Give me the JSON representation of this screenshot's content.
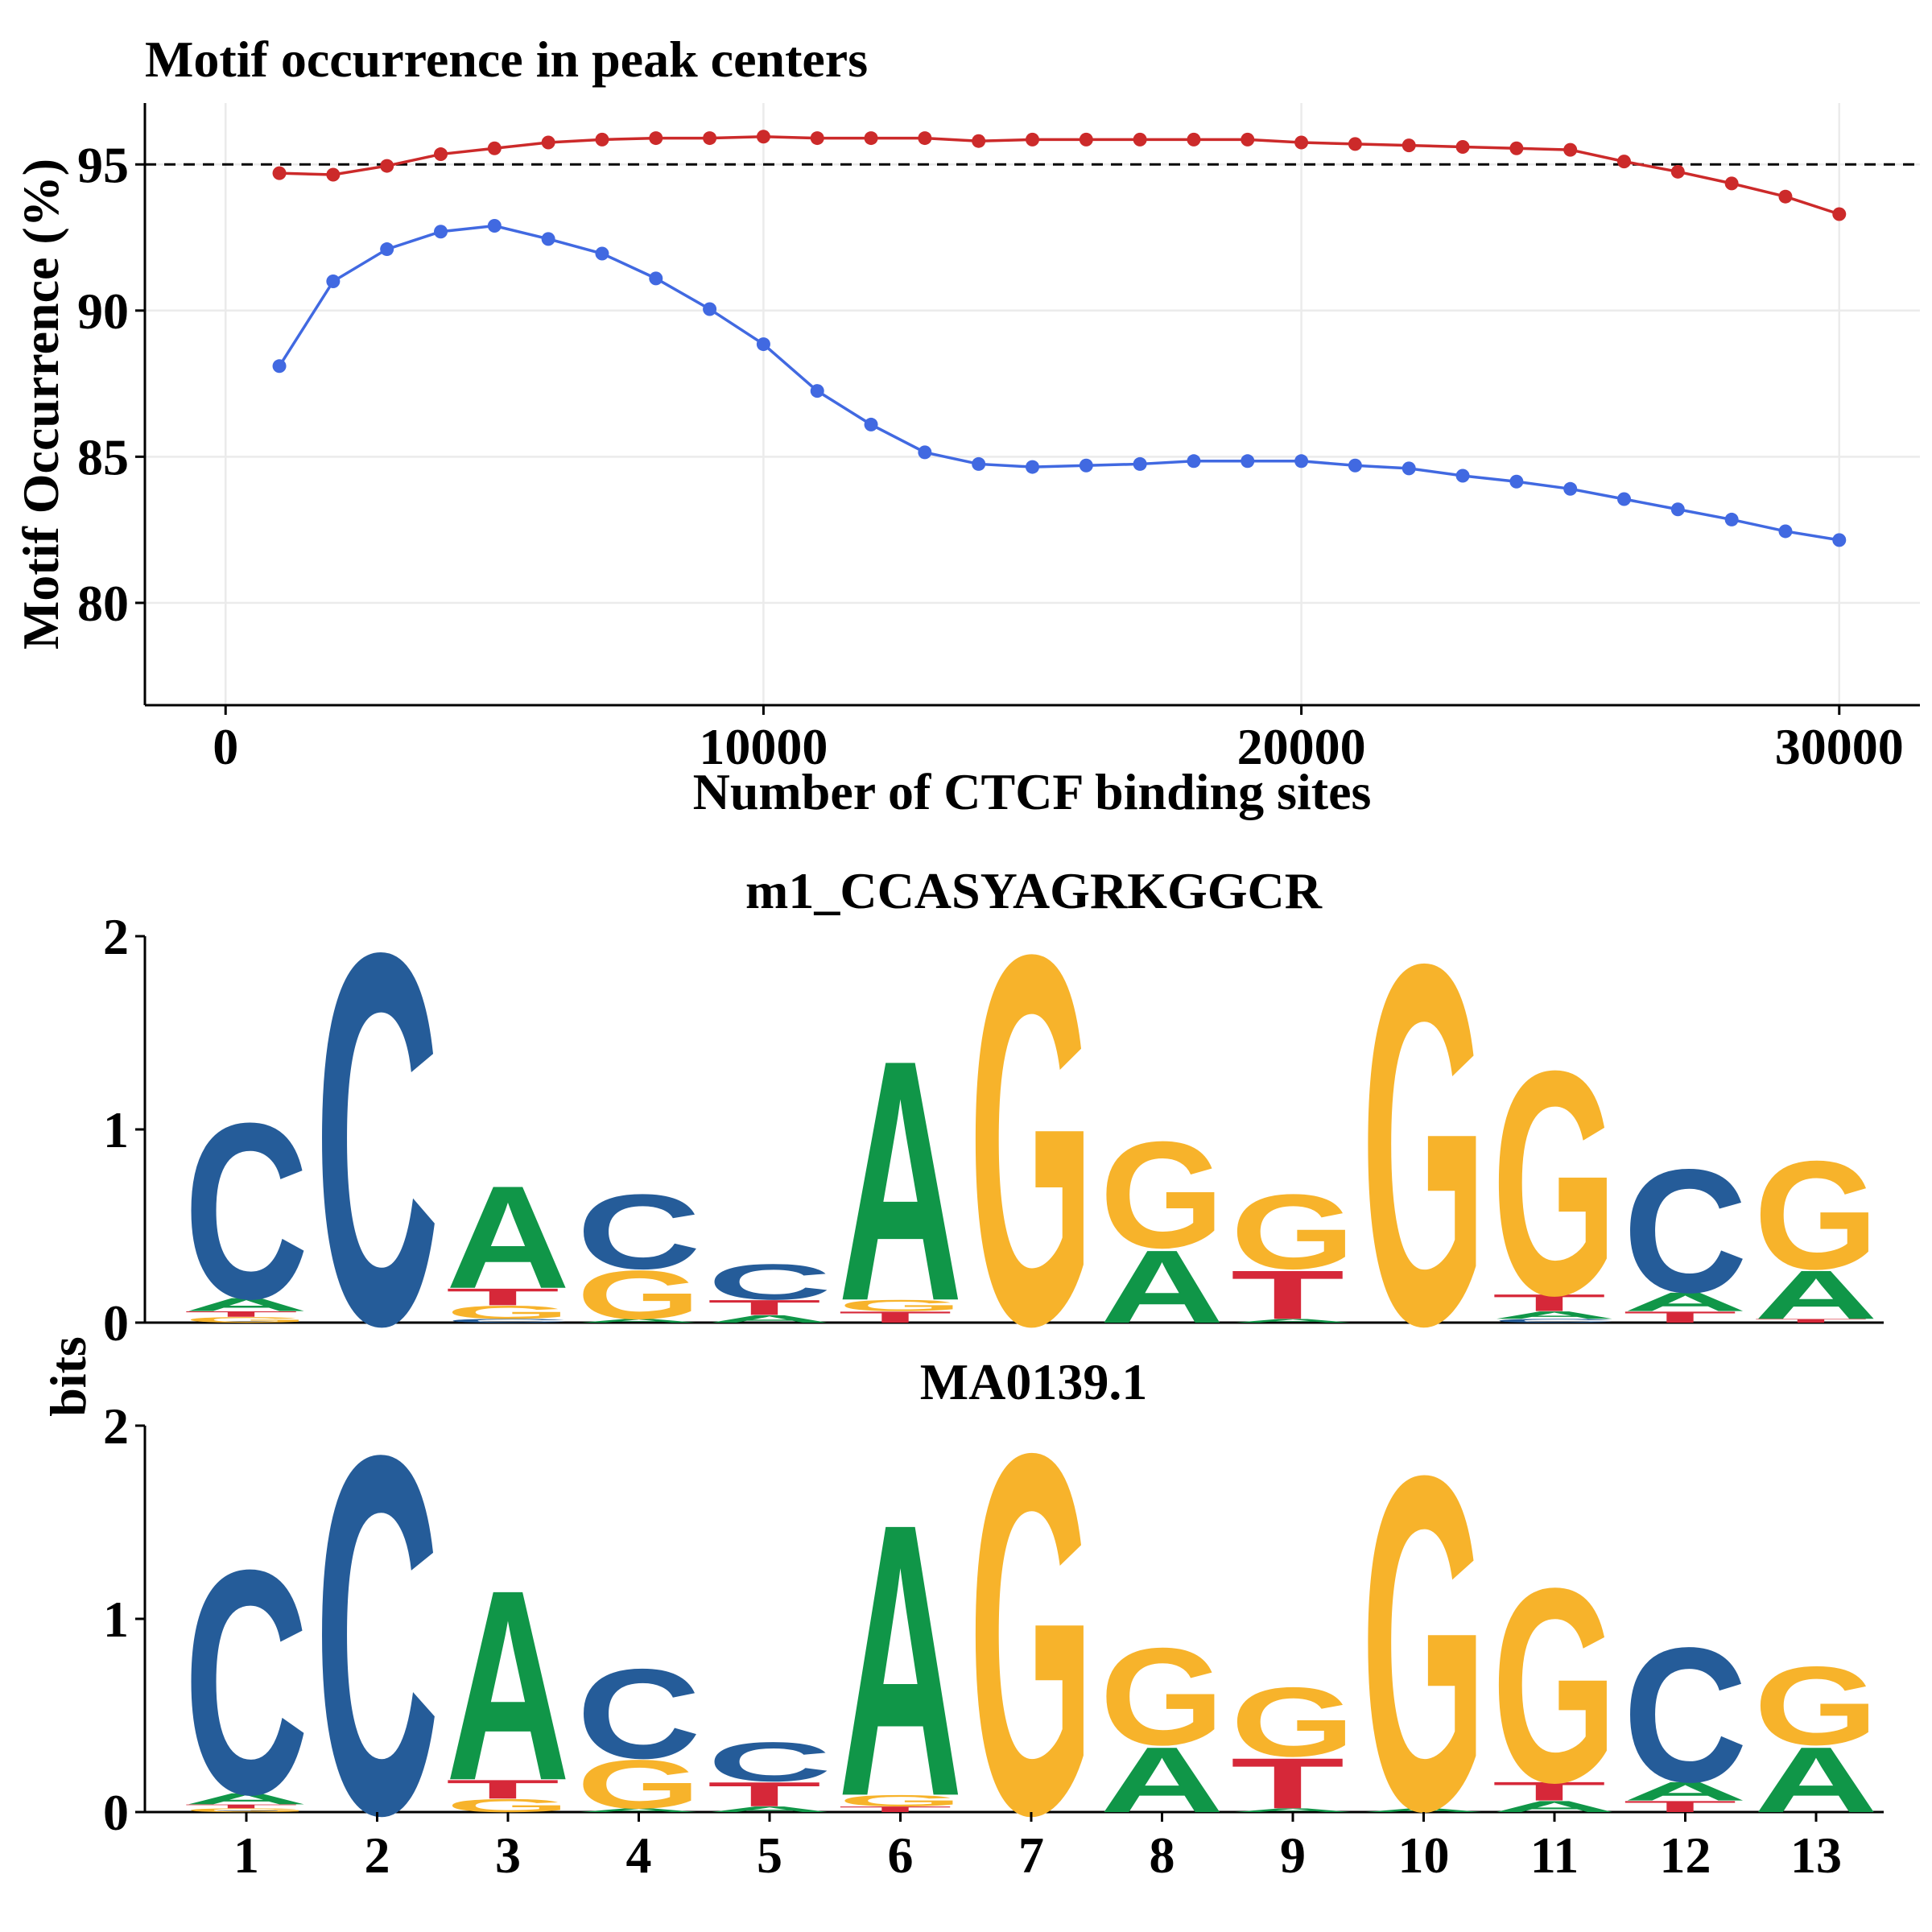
{
  "chart_data": [
    {
      "type": "line",
      "title": "Motif occurrence in peak centers",
      "xlabel": "Number of CTCF binding sites",
      "ylabel": "Motif Occurrence (%)",
      "xlim": [
        -1500,
        31500
      ],
      "ylim": [
        76.5,
        97.1
      ],
      "x_ticks": [
        0,
        10000,
        20000,
        30000
      ],
      "y_ticks": [
        80,
        85,
        90,
        95
      ],
      "x_tick_labels": [
        "0",
        "10000",
        "20000",
        "30000"
      ],
      "y_tick_labels": [
        "80",
        "85",
        "90",
        "95"
      ],
      "reference_line": 95,
      "grid": true,
      "legend": "none",
      "x": [
        1000,
        2000,
        3000,
        4000,
        5000,
        6000,
        7000,
        8000,
        9000,
        10000,
        11000,
        12000,
        13000,
        14000,
        15000,
        16000,
        17000,
        18000,
        19000,
        20000,
        21000,
        22000,
        23000,
        24000,
        25000,
        26000,
        27000,
        28000,
        29000,
        30000
      ],
      "series": [
        {
          "color": "#cc2a2a",
          "values": [
            94.7,
            94.65,
            94.95,
            95.35,
            95.55,
            95.75,
            95.85,
            95.9,
            95.9,
            95.95,
            95.9,
            95.9,
            95.9,
            95.8,
            95.85,
            95.85,
            95.85,
            95.85,
            95.85,
            95.75,
            95.7,
            95.65,
            95.6,
            95.55,
            95.5,
            95.1,
            94.75,
            94.35,
            93.9,
            93.3
          ]
        },
        {
          "color": "#4169e1",
          "values": [
            88.1,
            91.0,
            92.1,
            92.7,
            92.9,
            92.45,
            91.95,
            91.1,
            90.05,
            88.85,
            87.25,
            86.1,
            85.15,
            84.75,
            84.65,
            84.7,
            84.75,
            84.85,
            84.85,
            84.85,
            84.7,
            84.6,
            84.35,
            84.15,
            83.9,
            83.55,
            83.2,
            82.85,
            82.45,
            82.15
          ]
        }
      ]
    },
    {
      "type": "sequence_logo",
      "title": "m1_CCASYAGRKGGCR",
      "ylabel": "bits",
      "ylim": [
        0,
        2
      ],
      "y_ticks": [
        0,
        1,
        2
      ],
      "y_tick_labels": [
        "0",
        "1",
        "2"
      ],
      "positions": [
        [
          {
            "letter": "G",
            "bits": 0.03
          },
          {
            "letter": "T",
            "bits": 0.03
          },
          {
            "letter": "A",
            "bits": 0.07
          },
          {
            "letter": "C",
            "bits": 0.94
          }
        ],
        [
          {
            "letter": "C",
            "bits": 1.99
          }
        ],
        [
          {
            "letter": "C",
            "bits": 0.02
          },
          {
            "letter": "G",
            "bits": 0.07
          },
          {
            "letter": "T",
            "bits": 0.09
          },
          {
            "letter": "A",
            "bits": 0.55
          }
        ],
        [
          {
            "letter": "A",
            "bits": 0.02
          },
          {
            "letter": "G",
            "bits": 0.26
          },
          {
            "letter": "C",
            "bits": 0.4
          }
        ],
        [
          {
            "letter": "A",
            "bits": 0.04
          },
          {
            "letter": "T",
            "bits": 0.08
          },
          {
            "letter": "C",
            "bits": 0.19
          }
        ],
        [
          {
            "letter": "T",
            "bits": 0.06
          },
          {
            "letter": "G",
            "bits": 0.06
          },
          {
            "letter": "A",
            "bits": 1.29
          }
        ],
        [
          {
            "letter": "G",
            "bits": 1.98
          }
        ],
        [
          {
            "letter": "A",
            "bits": 0.39
          },
          {
            "letter": "G",
            "bits": 0.57
          }
        ],
        [
          {
            "letter": "A",
            "bits": 0.02
          },
          {
            "letter": "T",
            "bits": 0.26
          },
          {
            "letter": "G",
            "bits": 0.4
          }
        ],
        [
          {
            "letter": "G",
            "bits": 1.93
          }
        ],
        [
          {
            "letter": "C",
            "bits": 0.02
          },
          {
            "letter": "A",
            "bits": 0.04
          },
          {
            "letter": "T",
            "bits": 0.09
          },
          {
            "letter": "G",
            "bits": 1.2
          }
        ],
        [
          {
            "letter": "T",
            "bits": 0.06
          },
          {
            "letter": "A",
            "bits": 0.1
          },
          {
            "letter": "C",
            "bits": 0.66
          }
        ],
        [
          {
            "letter": "T",
            "bits": 0.02
          },
          {
            "letter": "A",
            "bits": 0.26
          },
          {
            "letter": "G",
            "bits": 0.58
          }
        ]
      ]
    },
    {
      "type": "sequence_logo",
      "title": "MA0139.1",
      "xlabel": "",
      "ylabel": "bits",
      "ylim": [
        0,
        2
      ],
      "y_ticks": [
        0,
        1,
        2
      ],
      "y_tick_labels": [
        "0",
        "1",
        "2"
      ],
      "x_tick_labels": [
        "1",
        "2",
        "3",
        "4",
        "5",
        "6",
        "7",
        "8",
        "9",
        "10",
        "11",
        "12",
        "13"
      ],
      "positions": [
        [
          {
            "letter": "G",
            "bits": 0.02
          },
          {
            "letter": "T",
            "bits": 0.02
          },
          {
            "letter": "A",
            "bits": 0.06
          },
          {
            "letter": "C",
            "bits": 1.2
          }
        ],
        [
          {
            "letter": "C",
            "bits": 1.92
          }
        ],
        [
          {
            "letter": "G",
            "bits": 0.07
          },
          {
            "letter": "T",
            "bits": 0.1
          },
          {
            "letter": "A",
            "bits": 1.02
          }
        ],
        [
          {
            "letter": "A",
            "bits": 0.02
          },
          {
            "letter": "G",
            "bits": 0.26
          },
          {
            "letter": "C",
            "bits": 0.48
          }
        ],
        [
          {
            "letter": "A",
            "bits": 0.03
          },
          {
            "letter": "T",
            "bits": 0.13
          },
          {
            "letter": "C",
            "bits": 0.21
          }
        ],
        [
          {
            "letter": "T",
            "bits": 0.03
          },
          {
            "letter": "G",
            "bits": 0.06
          },
          {
            "letter": "A",
            "bits": 1.46
          }
        ],
        [
          {
            "letter": "G",
            "bits": 1.93
          }
        ],
        [
          {
            "letter": "A",
            "bits": 0.35
          },
          {
            "letter": "G",
            "bits": 0.52
          }
        ],
        [
          {
            "letter": "A",
            "bits": 0.02
          },
          {
            "letter": "T",
            "bits": 0.27
          },
          {
            "letter": "G",
            "bits": 0.37
          }
        ],
        [
          {
            "letter": "A",
            "bits": 0.02
          },
          {
            "letter": "G",
            "bits": 1.79
          }
        ],
        [
          {
            "letter": "A",
            "bits": 0.06
          },
          {
            "letter": "T",
            "bits": 0.1
          },
          {
            "letter": "G",
            "bits": 1.04
          }
        ],
        [
          {
            "letter": "T",
            "bits": 0.06
          },
          {
            "letter": "A",
            "bits": 0.1
          },
          {
            "letter": "C",
            "bits": 0.72
          }
        ],
        [
          {
            "letter": "A",
            "bits": 0.35
          },
          {
            "letter": "G",
            "bits": 0.42
          }
        ]
      ]
    }
  ],
  "logo_colors": {
    "A": "#109648",
    "C": "#255c99",
    "G": "#f7b32b",
    "T": "#d62839"
  }
}
